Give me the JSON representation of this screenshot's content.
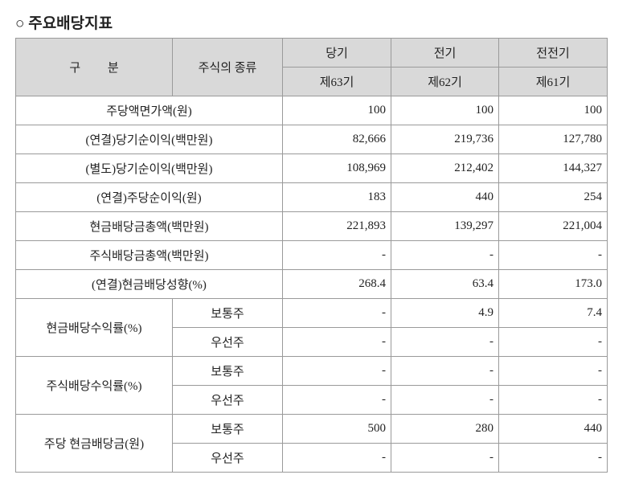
{
  "title": "○ 주요배당지표",
  "table": {
    "header": {
      "category": "구 분",
      "stock_type": "주식의 종류",
      "periods": [
        {
          "name": "당기",
          "term": "제63기"
        },
        {
          "name": "전기",
          "term": "제62기"
        },
        {
          "name": "전전기",
          "term": "제61기"
        }
      ]
    },
    "rows": [
      {
        "label": "주당액면가액(원)",
        "values": [
          "100",
          "100",
          "100"
        ]
      },
      {
        "label": "(연결)당기순이익(백만원)",
        "values": [
          "82,666",
          "219,736",
          "127,780"
        ]
      },
      {
        "label": "(별도)당기순이익(백만원)",
        "values": [
          "108,969",
          "212,402",
          "144,327"
        ]
      },
      {
        "label": "(연결)주당순이익(원)",
        "values": [
          "183",
          "440",
          "254"
        ]
      },
      {
        "label": "현금배당금총액(백만원)",
        "values": [
          "221,893",
          "139,297",
          "221,004"
        ]
      },
      {
        "label": "주식배당금총액(백만원)",
        "values": [
          "-",
          "-",
          "-"
        ]
      },
      {
        "label": "(연결)현금배당성향(%)",
        "values": [
          "268.4",
          "63.4",
          "173.0"
        ]
      },
      {
        "label": "현금배당수익률(%)",
        "sub": [
          {
            "type": "보통주",
            "values": [
              "-",
              "4.9",
              "7.4"
            ]
          },
          {
            "type": "우선주",
            "values": [
              "-",
              "-",
              "-"
            ]
          }
        ]
      },
      {
        "label": "주식배당수익률(%)",
        "sub": [
          {
            "type": "보통주",
            "values": [
              "-",
              "-",
              "-"
            ]
          },
          {
            "type": "우선주",
            "values": [
              "-",
              "-",
              "-"
            ]
          }
        ]
      },
      {
        "label": "주당 현금배당금(원)",
        "sub": [
          {
            "type": "보통주",
            "values": [
              "500",
              "280",
              "440"
            ]
          },
          {
            "type": "우선주",
            "values": [
              "-",
              "-",
              "-"
            ]
          }
        ]
      }
    ]
  }
}
